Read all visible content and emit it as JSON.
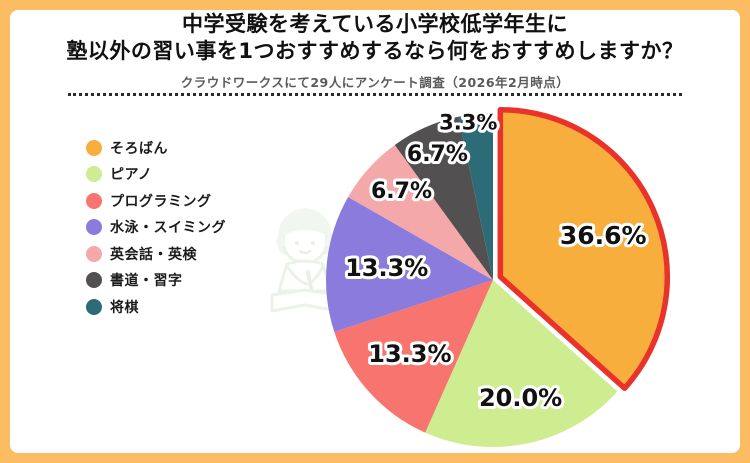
{
  "frame": {
    "border_color": "#FBBC62",
    "panel_color": "#FFFFFF"
  },
  "header": {
    "title_line1": "中学受験を考えている小学校低学年生に",
    "title_line2": "塾以外の習い事を1つおすすめするなら何をおすすめしますか？",
    "subtitle": "クラウドワークスにて29人にアンケート調査（2026年2月時点）"
  },
  "icons": {
    "watermark": "child-writing-illustration"
  },
  "chart_data": {
    "type": "pie",
    "title": "中学受験を考えている小学校低学年生に塾以外の習い事を1つおすすめするなら何をおすすめしますか？",
    "subtitle": "クラウドワークスにて29人にアンケート調査（2026年2月時点）",
    "start_angle_deg": 0,
    "direction": "clockwise",
    "legend_position": "left",
    "highlight": {
      "item": "そろばん",
      "style": "exploded-with-red-outline",
      "outline_color": "#E9322A"
    },
    "label_text_color": "#111111",
    "label_outline_color": "#FFFFFF",
    "items": [
      {
        "label": "そろばん",
        "value_pct": 36.6,
        "display": "36.6%",
        "color": "#F8AE3D",
        "exploded": true
      },
      {
        "label": "ピアノ",
        "value_pct": 20.0,
        "display": "20.0%",
        "color": "#CEEC90"
      },
      {
        "label": "プログラミング",
        "value_pct": 13.3,
        "display": "13.3%",
        "color": "#F8756F"
      },
      {
        "label": "水泳・スイミング",
        "value_pct": 13.3,
        "display": "13.3%",
        "color": "#8B7BDC"
      },
      {
        "label": "英会話・英検",
        "value_pct": 6.7,
        "display": "6.7%",
        "color": "#F5A8AA"
      },
      {
        "label": "書道・習字",
        "value_pct": 6.7,
        "display": "6.7%",
        "color": "#525051"
      },
      {
        "label": "将棋",
        "value_pct": 3.3,
        "display": "3.3%",
        "color": "#2D6C77"
      }
    ]
  }
}
